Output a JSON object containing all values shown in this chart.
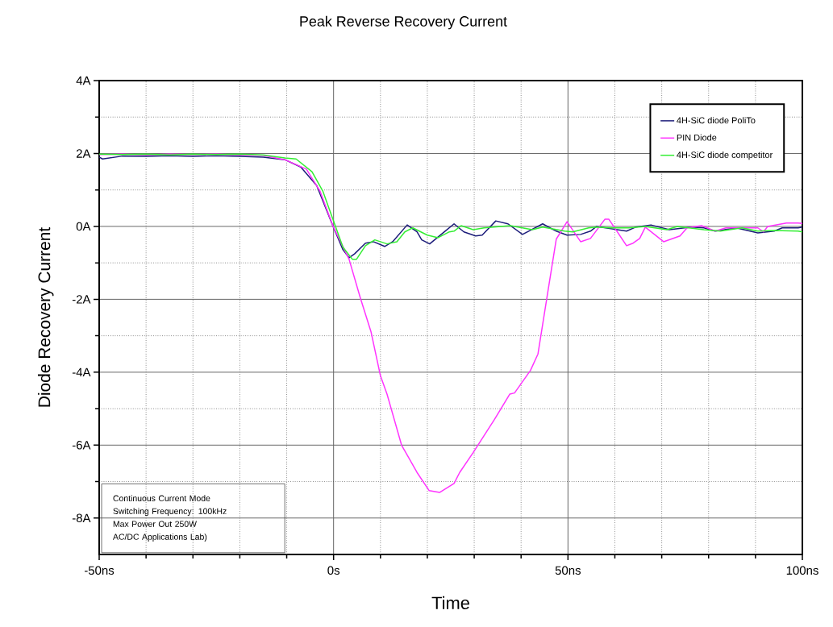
{
  "chart_data": {
    "type": "line",
    "title": "Peak Reverse Recovery Current",
    "xlabel": "Time",
    "ylabel": "Diode Recovery Current",
    "xlim": [
      -50,
      100
    ],
    "ylim": [
      -9,
      4
    ],
    "xticks": [
      {
        "value": -50,
        "label": "-50ns"
      },
      {
        "value": -40,
        "label": null
      },
      {
        "value": -30,
        "label": null
      },
      {
        "value": -20,
        "label": null
      },
      {
        "value": -10,
        "label": null
      },
      {
        "value": 0,
        "label": "0s"
      },
      {
        "value": 10,
        "label": null
      },
      {
        "value": 20,
        "label": null
      },
      {
        "value": 30,
        "label": null
      },
      {
        "value": 40,
        "label": null
      },
      {
        "value": 50,
        "label": "50ns"
      },
      {
        "value": 60,
        "label": null
      },
      {
        "value": 70,
        "label": null
      },
      {
        "value": 80,
        "label": null
      },
      {
        "value": 90,
        "label": null
      },
      {
        "value": 100,
        "label": "100ns"
      }
    ],
    "yticks": [
      {
        "value": 4,
        "label": "4A"
      },
      {
        "value": 3,
        "label": null
      },
      {
        "value": 2,
        "label": "2A"
      },
      {
        "value": 1,
        "label": null
      },
      {
        "value": 0,
        "label": "0A"
      },
      {
        "value": -1,
        "label": null
      },
      {
        "value": -2,
        "label": "-2A"
      },
      {
        "value": -3,
        "label": null
      },
      {
        "value": -4,
        "label": "-4A"
      },
      {
        "value": -5,
        "label": null
      },
      {
        "value": -6,
        "label": "-6A"
      },
      {
        "value": -7,
        "label": null
      },
      {
        "value": -8,
        "label": "-8A"
      }
    ],
    "grid": true,
    "legend": "top right",
    "line_style": "solid",
    "annotations": [
      "Continuous Current Mode",
      "Switching Frequency: 100kHz",
      "Max Power Out 250W",
      "AC/DC Applications Lab)"
    ],
    "series": [
      {
        "name": "4H-SiC diode PoliTo",
        "color": "#1c1c7a",
        "x": [
          -50,
          -49.3,
          -45,
          -40,
          -35,
          -30,
          -25,
          -20,
          -15,
          -10.4,
          -7,
          -3.6,
          -0.1,
          2.0,
          3.3,
          4.5,
          6.8,
          8.5,
          10.9,
          12.6,
          15.7,
          17.8,
          18.8,
          20.5,
          24,
          25.7,
          27.8,
          30.3,
          31.7,
          34.6,
          37.2,
          40.3,
          44.6,
          47.5,
          49.8,
          52.7,
          54.8,
          56.1,
          62.5,
          64.4,
          67.7,
          71.6,
          76.3,
          79,
          81.4,
          85.9,
          90.5,
          94,
          95.7,
          99.1,
          100
        ],
        "values": [
          1.9,
          1.85,
          1.93,
          1.92,
          1.94,
          1.92,
          1.94,
          1.92,
          1.9,
          1.83,
          1.63,
          1.12,
          0,
          -0.64,
          -0.86,
          -0.75,
          -0.46,
          -0.42,
          -0.55,
          -0.42,
          0.04,
          -0.15,
          -0.37,
          -0.48,
          -0.11,
          0.07,
          -0.15,
          -0.26,
          -0.24,
          0.15,
          0.07,
          -0.22,
          0.07,
          -0.13,
          -0.24,
          -0.22,
          -0.13,
          0,
          -0.13,
          -0.02,
          0.04,
          -0.09,
          -0.02,
          -0.04,
          -0.13,
          -0.04,
          -0.18,
          -0.13,
          -0.04,
          -0.04,
          -0.02
        ]
      },
      {
        "name": "PIN Diode",
        "color": "#ff33ff",
        "x": [
          -50,
          -45,
          -40,
          -35,
          -30,
          -25,
          -20,
          -15,
          -10.4,
          -5.8,
          -2.9,
          -0.1,
          3.3,
          5.7,
          8.0,
          10.0,
          11.4,
          14.5,
          17.8,
          20.4,
          22.6,
          25.7,
          26.9,
          29.8,
          34.3,
          37.6,
          38.6,
          42.0,
          43.6,
          45.5,
          47.5,
          49.8,
          52.7,
          54.8,
          57.9,
          58.7,
          62.5,
          63.9,
          65.3,
          66.5,
          70.4,
          73.9,
          75.4,
          78.5,
          81.4,
          83.7,
          90.5,
          91.7,
          92.6,
          96.6,
          99.1,
          100
        ],
        "values": [
          1.97,
          1.98,
          1.96,
          1.98,
          1.97,
          1.98,
          1.96,
          1.95,
          1.83,
          1.57,
          0.97,
          0,
          -0.9,
          -1.96,
          -2.9,
          -4.1,
          -4.6,
          -6.0,
          -6.75,
          -7.25,
          -7.3,
          -7.05,
          -6.75,
          -6.2,
          -5.3,
          -4.6,
          -4.57,
          -3.95,
          -3.5,
          -1.96,
          -0.35,
          0.13,
          -0.42,
          -0.33,
          0.2,
          0.2,
          -0.53,
          -0.46,
          -0.33,
          -0.02,
          -0.42,
          -0.26,
          -0.04,
          0.02,
          -0.13,
          -0.04,
          -0.04,
          -0.15,
          0,
          0.09,
          0.09,
          0.08
        ]
      },
      {
        "name": "4H-SiC diode competitor",
        "color": "#33ee33",
        "x": [
          -50,
          -45,
          -40,
          -35,
          -30,
          -25,
          -20,
          -15,
          -10.4,
          -8,
          -4.6,
          -2.3,
          -0.1,
          2.0,
          4.0,
          4.9,
          6.8,
          8.8,
          11.4,
          13.5,
          15.2,
          16.9,
          20,
          22.3,
          24.7,
          25.7,
          27.2,
          29.8,
          32.1,
          37.7,
          42.4,
          44.6,
          49.3,
          51,
          54.4,
          56.1,
          59.1,
          63,
          66.5,
          71.1,
          73.3,
          79,
          82.5,
          87.1,
          90.5,
          94,
          99.1,
          100
        ],
        "values": [
          1.98,
          1.97,
          1.98,
          1.96,
          1.98,
          1.97,
          1.98,
          1.96,
          1.88,
          1.85,
          1.5,
          0.97,
          0.18,
          -0.57,
          -0.9,
          -0.9,
          -0.53,
          -0.37,
          -0.48,
          -0.42,
          -0.15,
          -0.04,
          -0.24,
          -0.31,
          -0.15,
          -0.13,
          0.02,
          -0.09,
          -0.04,
          0.02,
          -0.09,
          -0.02,
          -0.13,
          -0.15,
          -0.04,
          -0.02,
          -0.04,
          -0.04,
          0,
          -0.09,
          0,
          -0.09,
          -0.13,
          -0.04,
          -0.13,
          -0.11,
          -0.13,
          -0.15
        ]
      }
    ]
  }
}
